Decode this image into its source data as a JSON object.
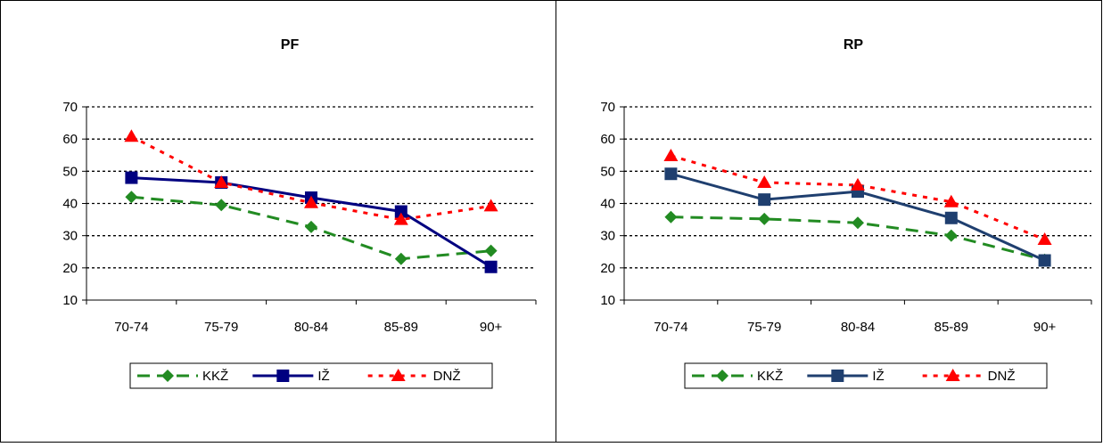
{
  "chart_data": [
    {
      "type": "line",
      "title": "PF",
      "categories": [
        "70-74",
        "75-79",
        "80-84",
        "85-89",
        "90+"
      ],
      "ylim": [
        10,
        70
      ],
      "yticks": [
        "10",
        "20",
        "30",
        "40",
        "50",
        "60",
        "70"
      ],
      "grid": "horizontal dotted",
      "legend_position": "bottom",
      "series": [
        {
          "name": "KKŽ",
          "values": [
            42,
            39.5,
            32.7,
            22.8,
            25.3
          ],
          "color": "#228B22",
          "marker": "diamond",
          "dash": "dashed"
        },
        {
          "name": "IŽ",
          "values": [
            48,
            46.5,
            41.8,
            37.5,
            20.3
          ],
          "color": "#000080",
          "marker": "square",
          "dash": "solid"
        },
        {
          "name": "DNŽ",
          "values": [
            60.8,
            46.5,
            40.2,
            35,
            39.2
          ],
          "color": "#FF0000",
          "marker": "triangle",
          "dash": "dotted"
        }
      ]
    },
    {
      "type": "line",
      "title": "RP",
      "categories": [
        "70-74",
        "75-79",
        "80-84",
        "85-89",
        "90+"
      ],
      "ylim": [
        10,
        70
      ],
      "yticks": [
        "10",
        "20",
        "30",
        "40",
        "50",
        "60",
        "70"
      ],
      "grid": "horizontal dotted",
      "legend_position": "bottom",
      "series": [
        {
          "name": "KKŽ",
          "values": [
            35.8,
            35.2,
            34,
            30,
            22.5
          ],
          "color": "#228B22",
          "marker": "diamond",
          "dash": "dashed"
        },
        {
          "name": "IŽ",
          "values": [
            49.2,
            41.2,
            43.7,
            35.5,
            22.3
          ],
          "color": "#1F3F6F",
          "marker": "square",
          "dash": "solid"
        },
        {
          "name": "DNŽ",
          "values": [
            54.8,
            46.5,
            45.7,
            40.5,
            28.8
          ],
          "color": "#FF0000",
          "marker": "triangle",
          "dash": "dotted"
        }
      ]
    }
  ]
}
